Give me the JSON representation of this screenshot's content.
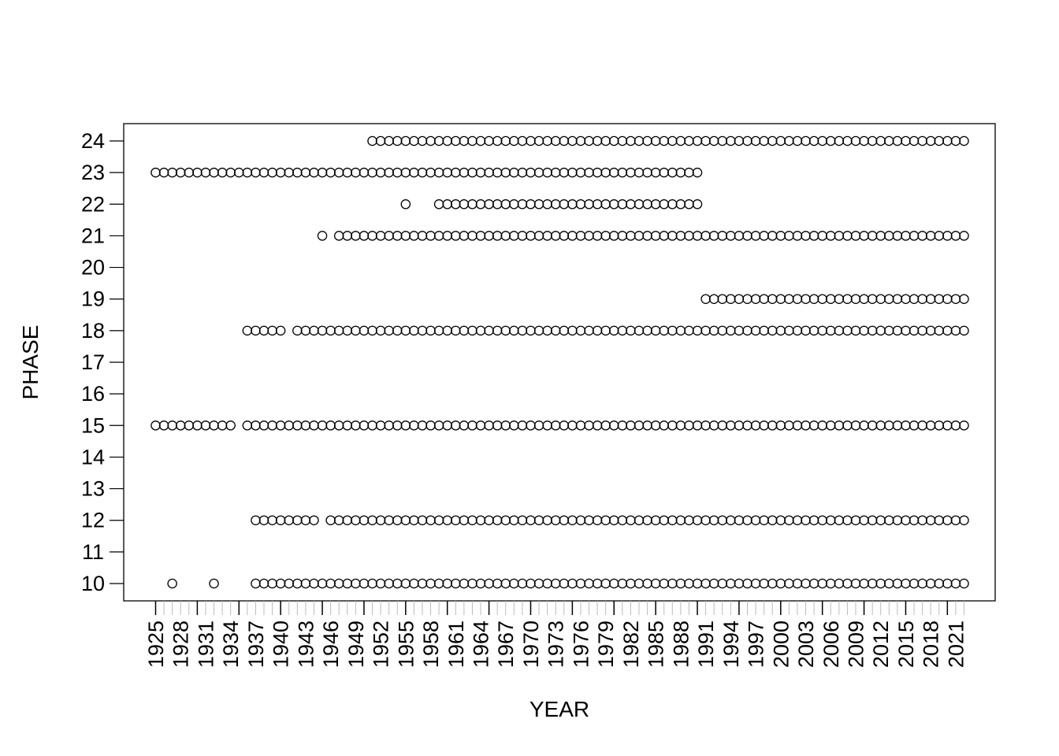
{
  "chart_data": {
    "type": "scatter",
    "title": "",
    "xlabel": "YEAR",
    "ylabel": "PHASE",
    "xlim": [
      1925,
      2022
    ],
    "ylim": [
      10,
      24
    ],
    "y_ticks": [
      "10",
      "11",
      "12",
      "13",
      "14",
      "15",
      "16",
      "17",
      "18",
      "19",
      "20",
      "21",
      "22",
      "23",
      "24"
    ],
    "x_tick_labels": [
      "1925",
      "1928",
      "1931",
      "1934",
      "1937",
      "1940",
      "1943",
      "1946",
      "1949",
      "1952",
      "1955",
      "1958",
      "1961",
      "1964",
      "1967",
      "1970",
      "1973",
      "1976",
      "1979",
      "1982",
      "1985",
      "1988",
      "1991",
      "1994",
      "1997",
      "2000",
      "2003",
      "2006",
      "2009",
      "2012",
      "2015",
      "2018",
      "2021"
    ],
    "grid": false,
    "marker": "open-circle",
    "series": [
      {
        "phase": 24,
        "year_ranges": [
          [
            1951,
            2022
          ]
        ]
      },
      {
        "phase": 23,
        "year_ranges": [
          [
            1925,
            1990
          ]
        ]
      },
      {
        "phase": 22,
        "year_ranges": [
          [
            1955,
            1955
          ],
          [
            1959,
            1990
          ]
        ]
      },
      {
        "phase": 21,
        "year_ranges": [
          [
            1945,
            1945
          ],
          [
            1947,
            2022
          ]
        ]
      },
      {
        "phase": 19,
        "year_ranges": [
          [
            1991,
            2022
          ]
        ]
      },
      {
        "phase": 18,
        "year_ranges": [
          [
            1936,
            1940
          ],
          [
            1942,
            2022
          ]
        ]
      },
      {
        "phase": 15,
        "year_ranges": [
          [
            1925,
            1934
          ],
          [
            1936,
            2022
          ]
        ]
      },
      {
        "phase": 12,
        "year_ranges": [
          [
            1937,
            1944
          ],
          [
            1946,
            2022
          ]
        ]
      },
      {
        "phase": 10,
        "year_ranges": [
          [
            1927,
            1927
          ],
          [
            1932,
            1932
          ],
          [
            1937,
            2022
          ]
        ]
      }
    ]
  }
}
